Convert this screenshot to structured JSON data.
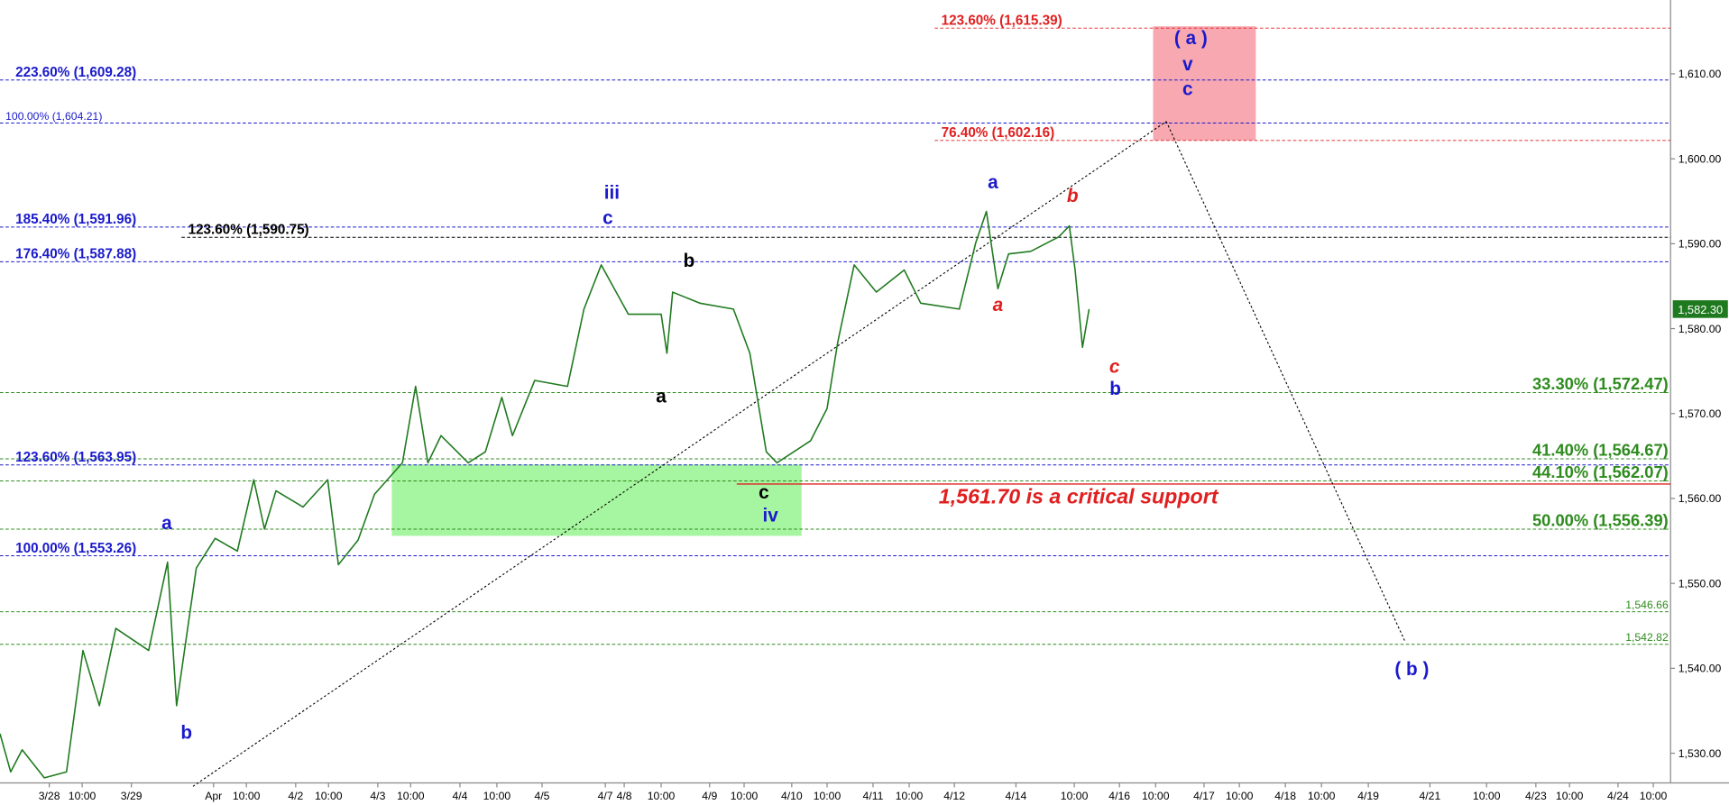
{
  "chart_data": {
    "type": "line",
    "color": "#1f7a1f",
    "xlim": [
      0,
      20.34
    ],
    "ylim": [
      1526.5,
      1618.7
    ],
    "x": [
      0,
      0.13,
      0.27,
      0.54,
      0.81,
      1.01,
      1.21,
      1.41,
      1.81,
      2.04,
      2.15,
      2.39,
      2.62,
      2.89,
      3.09,
      3.22,
      3.36,
      3.69,
      3.99,
      4.12,
      4.36,
      4.56,
      4.9,
      5.06,
      5.21,
      5.37,
      5.7,
      5.91,
      6.11,
      6.24,
      6.51,
      6.91,
      7.11,
      7.32,
      7.65,
      8.05,
      8.12,
      8.19,
      8.52,
      8.93,
      9.13,
      9.33,
      9.46,
      9.87,
      10.07,
      10.2,
      10.4,
      10.67,
      11.01,
      11.21,
      11.68,
      11.88,
      12.01,
      12.15,
      12.28,
      12.55,
      12.89,
      13.02,
      13.09,
      13.18,
      13.26
    ],
    "values": [
      1532.3,
      1527.8,
      1530.4,
      1527.1,
      1527.8,
      1542.1,
      1535.6,
      1544.7,
      1542.1,
      1552.5,
      1535.6,
      1551.8,
      1555.3,
      1553.8,
      1562.2,
      1556.4,
      1560.9,
      1559.0,
      1562.2,
      1552.2,
      1555.1,
      1560.5,
      1564.2,
      1573.2,
      1564.2,
      1567.4,
      1564.2,
      1565.5,
      1571.9,
      1567.4,
      1573.9,
      1573.2,
      1582.3,
      1587.5,
      1581.7,
      1581.7,
      1577.1,
      1584.3,
      1583.0,
      1582.3,
      1577.1,
      1565.5,
      1564.2,
      1566.8,
      1570.6,
      1578.4,
      1587.5,
      1584.3,
      1586.9,
      1583.0,
      1582.3,
      1590.1,
      1593.8,
      1584.7,
      1588.8,
      1589.1,
      1590.8,
      1592.1,
      1586.9,
      1577.8,
      1582.3
    ],
    "yticks": [
      {
        "value": 1530,
        "label": "1,530.00"
      },
      {
        "value": 1540,
        "label": "1,540.00"
      },
      {
        "value": 1550,
        "label": "1,550.00"
      },
      {
        "value": 1560,
        "label": "1,560.00"
      },
      {
        "value": 1570,
        "label": "1,570.00"
      },
      {
        "value": 1580,
        "label": "1,580.00"
      },
      {
        "value": 1590,
        "label": "1,590.00"
      },
      {
        "value": 1600,
        "label": "1,600.00"
      },
      {
        "value": 1610,
        "label": "1,610.00"
      }
    ],
    "xticks": [
      {
        "value": 0.6,
        "label": "3/28"
      },
      {
        "value": 1.0,
        "label": "10:00"
      },
      {
        "value": 1.6,
        "label": "3/29"
      },
      {
        "value": 2.6,
        "label": "Apr"
      },
      {
        "value": 3.0,
        "label": "10:00"
      },
      {
        "value": 3.6,
        "label": "4/2"
      },
      {
        "value": 4.0,
        "label": "10:00"
      },
      {
        "value": 4.6,
        "label": "4/3"
      },
      {
        "value": 5.0,
        "label": "10:00"
      },
      {
        "value": 5.6,
        "label": "4/4"
      },
      {
        "value": 6.05,
        "label": "10:00"
      },
      {
        "value": 6.6,
        "label": "4/5"
      },
      {
        "value": 7.37,
        "label": "4/7"
      },
      {
        "value": 7.6,
        "label": "4/8"
      },
      {
        "value": 8.05,
        "label": "10:00"
      },
      {
        "value": 8.64,
        "label": "4/9"
      },
      {
        "value": 9.06,
        "label": "10:00"
      },
      {
        "value": 9.64,
        "label": "4/10"
      },
      {
        "value": 10.07,
        "label": "10:00"
      },
      {
        "value": 10.63,
        "label": "4/11"
      },
      {
        "value": 11.07,
        "label": "10:00"
      },
      {
        "value": 11.62,
        "label": "4/12"
      },
      {
        "value": 12.37,
        "label": "4/14"
      },
      {
        "value": 13.08,
        "label": "10:00"
      },
      {
        "value": 13.63,
        "label": "4/16"
      },
      {
        "value": 14.07,
        "label": "10:00"
      },
      {
        "value": 14.66,
        "label": "4/17"
      },
      {
        "value": 15.09,
        "label": "10:00"
      },
      {
        "value": 15.65,
        "label": "4/18"
      },
      {
        "value": 16.09,
        "label": "10:00"
      },
      {
        "value": 16.66,
        "label": "4/19"
      },
      {
        "value": 17.41,
        "label": "4/21"
      },
      {
        "value": 18.1,
        "label": "10:00"
      },
      {
        "value": 18.7,
        "label": "4/23"
      },
      {
        "value": 19.11,
        "label": "10:00"
      },
      {
        "value": 19.7,
        "label": "4/24"
      },
      {
        "value": 20.13,
        "label": "10:00"
      }
    ],
    "levels": [
      {
        "value": 1615.39,
        "label": "123.60% (1,615.39)",
        "color": "#e02020",
        "start": 11.38,
        "align": "left"
      },
      {
        "value": 1609.28,
        "label": "223.60% (1,609.28)",
        "color": "#1a1acc",
        "start": 0,
        "align": "left"
      },
      {
        "value": 1604.21,
        "label": "100.00% (1,604.21)",
        "color": "#1a1acc",
        "start": 0,
        "align": "left",
        "small": true
      },
      {
        "value": 1602.16,
        "label": "76.40% (1,602.16)",
        "color": "#e02020",
        "start": 11.38,
        "align": "left"
      },
      {
        "value": 1591.96,
        "label": "185.40% (1,591.96)",
        "color": "#1a1acc",
        "start": 0,
        "align": "left"
      },
      {
        "value": 1590.75,
        "label": "123.60% (1,590.75)",
        "color": "#000000",
        "start": 2.21,
        "align": "left"
      },
      {
        "value": 1587.88,
        "label": "176.40% (1,587.88)",
        "color": "#1a1acc",
        "start": 0,
        "align": "left"
      },
      {
        "value": 1572.47,
        "label": "33.30% (1,572.47)",
        "color": "#2e8b1e",
        "start": 0,
        "align": "right"
      },
      {
        "value": 1564.67,
        "label": "41.40% (1,564.67)",
        "color": "#2e8b1e",
        "start": 0,
        "align": "right"
      },
      {
        "value": 1563.95,
        "label": "123.60% (1,563.95)",
        "color": "#1a1acc",
        "start": 0,
        "align": "left"
      },
      {
        "value": 1562.07,
        "label": "44.10% (1,562.07)",
        "color": "#2e8b1e",
        "start": 0,
        "align": "right"
      },
      {
        "value": 1556.39,
        "label": "50.00% (1,556.39)",
        "color": "#2e8b1e",
        "start": 0,
        "align": "right"
      },
      {
        "value": 1553.26,
        "label": "100.00% (1,553.26)",
        "color": "#1a1acc",
        "start": 0,
        "align": "left"
      },
      {
        "value": 1546.66,
        "label": "1,546.66",
        "color": "#2e8b1e",
        "start": 0,
        "align": "right",
        "small": true
      },
      {
        "value": 1542.82,
        "label": "1,542.82",
        "color": "#2e8b1e",
        "start": 0,
        "align": "right",
        "small": true
      }
    ],
    "support": {
      "value": 1561.7,
      "start": 8.97,
      "color": "#e02020"
    },
    "zones": [
      {
        "x": [
          14.04,
          15.29
        ],
        "y": [
          1602.16,
          1615.6
        ],
        "color": "#f7a8b0"
      },
      {
        "x": [
          4.77,
          9.76
        ],
        "y": [
          1555.6,
          1564.0
        ],
        "color": "#a6f5a0"
      }
    ],
    "trendlines": [
      {
        "x": [
          2.35,
          14.2
        ],
        "y": [
          1526.1,
          1604.4
        ]
      },
      {
        "x": [
          14.2,
          17.11
        ],
        "y": [
          1604.4,
          1543.1
        ]
      }
    ],
    "annotations": [
      {
        "text": "a",
        "x": 2.03,
        "y": 1556.4,
        "color": "#1a1acc"
      },
      {
        "text": "b",
        "x": 2.27,
        "y": 1531.7,
        "color": "#1a1acc"
      },
      {
        "text": "iii",
        "x": 7.45,
        "y": 1595.3,
        "color": "#1a1acc"
      },
      {
        "text": "c",
        "x": 7.4,
        "y": 1592.3,
        "color": "#1a1acc"
      },
      {
        "text": "b",
        "x": 8.39,
        "y": 1587.3,
        "color": "#000000"
      },
      {
        "text": "a",
        "x": 8.05,
        "y": 1571.3,
        "color": "#000000"
      },
      {
        "text": "c",
        "x": 9.3,
        "y": 1560.0,
        "color": "#000000"
      },
      {
        "text": "iv",
        "x": 9.38,
        "y": 1557.3,
        "color": "#1a1acc"
      },
      {
        "text": "a",
        "x": 12.09,
        "y": 1596.5,
        "color": "#1a1acc"
      },
      {
        "text": "a",
        "x": 12.15,
        "y": 1582.1,
        "color": "#e02020",
        "italic": true
      },
      {
        "text": "b",
        "x": 13.06,
        "y": 1594.9,
        "color": "#e02020",
        "italic": true
      },
      {
        "text": "c",
        "x": 13.57,
        "y": 1574.8,
        "color": "#e02020",
        "italic": true
      },
      {
        "text": "b",
        "x": 13.58,
        "y": 1572.2,
        "color": "#1a1acc"
      },
      {
        "text": "( a )",
        "x": 14.5,
        "y": 1613.5,
        "color": "#1a1acc"
      },
      {
        "text": "v",
        "x": 14.46,
        "y": 1610.4,
        "color": "#1a1acc"
      },
      {
        "text": "c",
        "x": 14.46,
        "y": 1607.5,
        "color": "#1a1acc"
      },
      {
        "text": "( b )",
        "x": 17.19,
        "y": 1539.2,
        "color": "#1a1acc"
      },
      {
        "text": "1,561.70 is a critical support",
        "x": 13.13,
        "y": 1559.4,
        "color": "#e02020",
        "italic": true,
        "big": true
      }
    ],
    "last_price": {
      "value": 1582.3,
      "label": "1,582.30"
    }
  }
}
